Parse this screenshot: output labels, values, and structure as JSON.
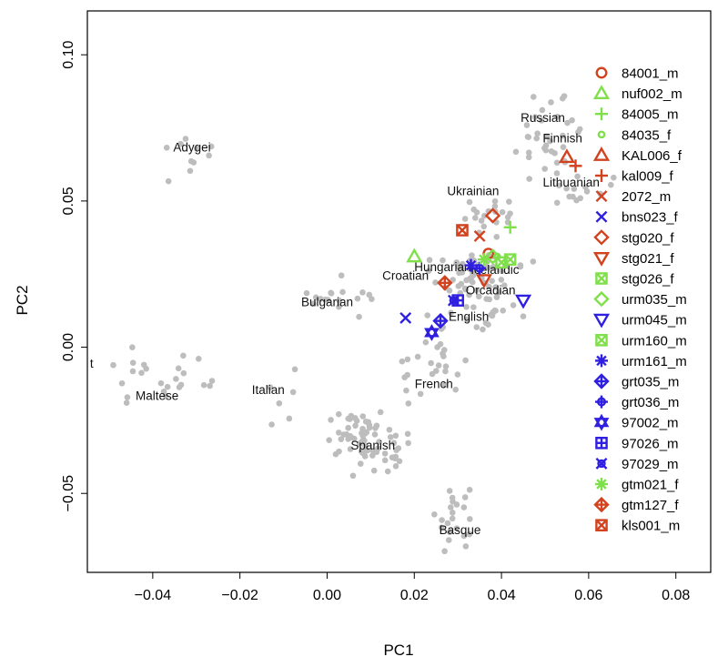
{
  "chart_data": {
    "type": "scatter",
    "title": "",
    "xlabel": "PC1",
    "ylabel": "PC2",
    "xlim": [
      -0.055,
      0.088
    ],
    "ylim": [
      -0.077,
      0.115
    ],
    "x_ticks": [
      -0.04,
      -0.02,
      0.0,
      0.02,
      0.04,
      0.06,
      0.08
    ],
    "x_tick_labels": [
      "−0.04",
      "−0.02",
      "0.00",
      "0.02",
      "0.04",
      "0.06",
      "0.08"
    ],
    "y_ticks": [
      -0.05,
      0.0,
      0.05,
      0.1
    ],
    "y_tick_labels": [
      "−0.05",
      "0.00",
      "0.05",
      "0.10"
    ],
    "grid": false,
    "legend_position": "right",
    "reference_color": "#bdbdbd",
    "population_labels": [
      {
        "text": "Adygei",
        "x": -0.031,
        "y": 0.067
      },
      {
        "text": "Russian",
        "x": 0.0495,
        "y": 0.077
      },
      {
        "text": "Finnish",
        "x": 0.054,
        "y": 0.07
      },
      {
        "text": "Lithuanian",
        "x": 0.056,
        "y": 0.055
      },
      {
        "text": "Ukrainian",
        "x": 0.0335,
        "y": 0.052
      },
      {
        "text": "Hungarian",
        "x": 0.0265,
        "y": 0.026
      },
      {
        "text": "Icelandic",
        "x": 0.0385,
        "y": 0.025
      },
      {
        "text": "Croatian",
        "x": 0.018,
        "y": 0.023
      },
      {
        "text": "Orcadian",
        "x": 0.0375,
        "y": 0.018
      },
      {
        "text": "Bulgarian",
        "x": 0.0,
        "y": 0.014
      },
      {
        "text": "English",
        "x": 0.0325,
        "y": 0.009
      },
      {
        "text": "French",
        "x": 0.0245,
        "y": -0.014
      },
      {
        "text": "Italian",
        "x": -0.0135,
        "y": -0.016
      },
      {
        "text": "Maltese",
        "x": -0.039,
        "y": -0.018
      },
      {
        "text": "Spanish",
        "x": 0.0105,
        "y": -0.035
      },
      {
        "text": "Basque",
        "x": 0.0305,
        "y": -0.064
      },
      {
        "text": "t",
        "x": -0.054,
        "y": -0.007
      }
    ],
    "reference_clusters": [
      {
        "cx": -0.031,
        "cy": 0.066,
        "sx": 0.004,
        "sy": 0.008,
        "n": 10
      },
      {
        "cx": 0.051,
        "cy": 0.072,
        "sx": 0.006,
        "sy": 0.01,
        "n": 35
      },
      {
        "cx": 0.058,
        "cy": 0.055,
        "sx": 0.005,
        "sy": 0.004,
        "n": 14
      },
      {
        "cx": 0.035,
        "cy": 0.045,
        "sx": 0.005,
        "sy": 0.006,
        "n": 20
      },
      {
        "cx": 0.035,
        "cy": 0.026,
        "sx": 0.008,
        "sy": 0.005,
        "n": 50
      },
      {
        "cx": 0.033,
        "cy": 0.013,
        "sx": 0.006,
        "sy": 0.005,
        "n": 30
      },
      {
        "cx": 0.004,
        "cy": 0.017,
        "sx": 0.006,
        "sy": 0.004,
        "n": 18
      },
      {
        "cx": 0.024,
        "cy": -0.006,
        "sx": 0.005,
        "sy": 0.01,
        "n": 24
      },
      {
        "cx": -0.033,
        "cy": -0.012,
        "sx": 0.006,
        "sy": 0.006,
        "n": 16
      },
      {
        "cx": -0.047,
        "cy": -0.01,
        "sx": 0.004,
        "sy": 0.008,
        "n": 8
      },
      {
        "cx": -0.011,
        "cy": -0.018,
        "sx": 0.004,
        "sy": 0.007,
        "n": 6
      },
      {
        "cx": 0.01,
        "cy": -0.032,
        "sx": 0.007,
        "sy": 0.007,
        "n": 70
      },
      {
        "cx": 0.028,
        "cy": -0.057,
        "sx": 0.004,
        "sy": 0.008,
        "n": 22
      }
    ],
    "series": [
      {
        "name": "84001_m",
        "color": "#d2421e",
        "marker": "circle",
        "points": [
          [
            0.037,
            0.032
          ]
        ]
      },
      {
        "name": "nuf002_m",
        "color": "#7fe04a",
        "marker": "triangle",
        "points": [
          [
            0.02,
            0.031
          ]
        ]
      },
      {
        "name": "84005_m",
        "color": "#7fe04a",
        "marker": "plus",
        "points": [
          [
            0.042,
            0.041
          ]
        ]
      },
      {
        "name": "84035_f",
        "color": "#7fe04a",
        "marker": "circle-small",
        "points": [
          [
            0.039,
            0.031
          ]
        ]
      },
      {
        "name": "KAL006_f",
        "color": "#d2421e",
        "marker": "triangle",
        "points": [
          [
            0.055,
            0.065
          ]
        ]
      },
      {
        "name": "kal009_f",
        "color": "#d2421e",
        "marker": "plus",
        "points": [
          [
            0.057,
            0.062
          ]
        ]
      },
      {
        "name": "2072_m",
        "color": "#d2421e",
        "marker": "cross",
        "points": [
          [
            0.035,
            0.038
          ]
        ]
      },
      {
        "name": "bns023_f",
        "color": "#2f1fe0",
        "marker": "cross",
        "points": [
          [
            0.018,
            0.01
          ]
        ]
      },
      {
        "name": "stg020_f",
        "color": "#d2421e",
        "marker": "diamond",
        "points": [
          [
            0.038,
            0.045
          ]
        ]
      },
      {
        "name": "stg021_f",
        "color": "#d2421e",
        "marker": "triangle-down",
        "points": [
          [
            0.036,
            0.023
          ]
        ]
      },
      {
        "name": "stg026_f",
        "color": "#7fe04a",
        "marker": "square-x",
        "points": [
          [
            0.042,
            0.03
          ]
        ]
      },
      {
        "name": "urm035_m",
        "color": "#7fe04a",
        "marker": "diamond",
        "points": [
          [
            0.038,
            0.031
          ]
        ]
      },
      {
        "name": "urm045_m",
        "color": "#2f1fe0",
        "marker": "triangle-down",
        "points": [
          [
            0.045,
            0.016
          ]
        ]
      },
      {
        "name": "urm160_m",
        "color": "#7fe04a",
        "marker": "square-x",
        "points": [
          [
            0.04,
            0.029
          ]
        ]
      },
      {
        "name": "urm161_m",
        "color": "#2f1fe0",
        "marker": "asterisk",
        "points": [
          [
            0.033,
            0.028
          ]
        ]
      },
      {
        "name": "grt035_m",
        "color": "#2f1fe0",
        "marker": "diamond-plus",
        "points": [
          [
            0.026,
            0.009
          ]
        ]
      },
      {
        "name": "grt036_m",
        "color": "#2f1fe0",
        "marker": "circle-plus",
        "points": [
          [
            0.035,
            0.027
          ]
        ]
      },
      {
        "name": "97002_m",
        "color": "#2f1fe0",
        "marker": "star-david",
        "points": [
          [
            0.024,
            0.005
          ]
        ]
      },
      {
        "name": "97026_m",
        "color": "#2f1fe0",
        "marker": "square-plus",
        "points": [
          [
            0.03,
            0.016
          ]
        ]
      },
      {
        "name": "97029_m",
        "color": "#2f1fe0",
        "marker": "circle-x",
        "points": [
          [
            0.029,
            0.016
          ]
        ]
      },
      {
        "name": "gtm021_f",
        "color": "#7fe04a",
        "marker": "asterisk",
        "points": [
          [
            0.036,
            0.03
          ]
        ]
      },
      {
        "name": "gtm127_f",
        "color": "#d2421e",
        "marker": "diamond-plus",
        "points": [
          [
            0.027,
            0.022
          ]
        ]
      },
      {
        "name": "kls001_m",
        "color": "#d2421e",
        "marker": "square-x",
        "points": [
          [
            0.031,
            0.04
          ]
        ]
      }
    ]
  }
}
